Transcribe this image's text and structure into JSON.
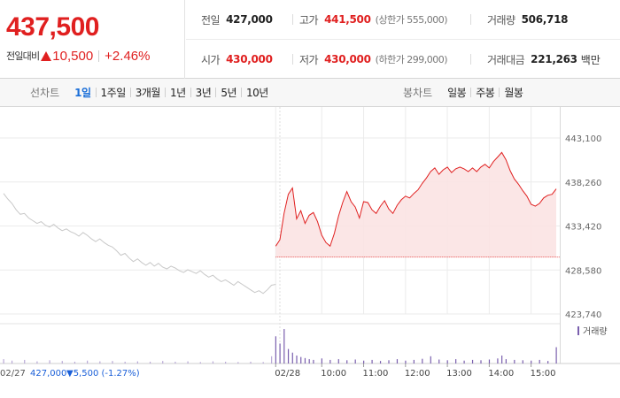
{
  "header": {
    "price": "437,500",
    "change_label": "전일대비",
    "change_value": "10,500",
    "change_percent": "+2.46%",
    "colors": {
      "up": "#e02020",
      "down": "#1a5fd8"
    }
  },
  "stats": {
    "prev_close": {
      "label": "전일",
      "value": "427,000"
    },
    "high": {
      "label": "고가",
      "value": "441,500",
      "sub": "(상한가 555,000)"
    },
    "volume": {
      "label": "거래량",
      "value": "506,718"
    },
    "open": {
      "label": "시가",
      "value": "430,000"
    },
    "low": {
      "label": "저가",
      "value": "430,000",
      "sub": "(하한가 299,000)"
    },
    "amount": {
      "label": "거래대금",
      "value": "221,263",
      "unit": "백만"
    }
  },
  "tabs": {
    "line_label": "선차트",
    "line_items": [
      "1일",
      "1주일",
      "3개월",
      "1년",
      "3년",
      "5년",
      "10년"
    ],
    "line_active": "1일",
    "candle_label": "봉차트",
    "candle_items": [
      "일봉",
      "주봉",
      "월봉"
    ]
  },
  "chart_data": {
    "type": "line",
    "ylim": [
      423740,
      443100
    ],
    "yticks": [
      "443,100",
      "438,260",
      "433,420",
      "428,580",
      "423,740"
    ],
    "ytick_values": [
      443100,
      438260,
      433420,
      428580,
      423740
    ],
    "reference_line": 430000,
    "series": [
      {
        "date": "02/27",
        "points": [
          [
            0,
            437000
          ],
          [
            1,
            436400
          ],
          [
            2,
            435900
          ],
          [
            3,
            435200
          ],
          [
            4,
            434700
          ],
          [
            5,
            434800
          ],
          [
            6,
            434300
          ],
          [
            7,
            434000
          ],
          [
            8,
            433700
          ],
          [
            9,
            433900
          ],
          [
            10,
            433500
          ],
          [
            11,
            433300
          ],
          [
            12,
            433600
          ],
          [
            13,
            433200
          ],
          [
            14,
            432900
          ],
          [
            15,
            433100
          ],
          [
            16,
            432800
          ],
          [
            17,
            432600
          ],
          [
            18,
            432300
          ],
          [
            19,
            432700
          ],
          [
            20,
            432400
          ],
          [
            21,
            432000
          ],
          [
            22,
            431700
          ],
          [
            23,
            432000
          ],
          [
            24,
            431600
          ],
          [
            25,
            431300
          ],
          [
            26,
            431100
          ],
          [
            27,
            430700
          ],
          [
            28,
            430200
          ],
          [
            29,
            430400
          ],
          [
            30,
            429900
          ],
          [
            31,
            429500
          ],
          [
            32,
            429800
          ],
          [
            33,
            429400
          ],
          [
            34,
            429100
          ],
          [
            35,
            429400
          ],
          [
            36,
            429000
          ],
          [
            37,
            429300
          ],
          [
            38,
            428900
          ],
          [
            39,
            428700
          ],
          [
            40,
            429000
          ],
          [
            41,
            428800
          ],
          [
            42,
            428500
          ],
          [
            43,
            428300
          ],
          [
            44,
            428600
          ],
          [
            45,
            428400
          ],
          [
            46,
            428200
          ],
          [
            47,
            428500
          ],
          [
            48,
            428100
          ],
          [
            49,
            427800
          ],
          [
            50,
            428000
          ],
          [
            51,
            427600
          ],
          [
            52,
            427300
          ],
          [
            53,
            427500
          ],
          [
            54,
            427200
          ],
          [
            55,
            426900
          ],
          [
            56,
            427300
          ],
          [
            57,
            427000
          ],
          [
            58,
            426700
          ],
          [
            59,
            426400
          ],
          [
            60,
            426100
          ],
          [
            61,
            426300
          ],
          [
            62,
            426000
          ],
          [
            63,
            426400
          ],
          [
            64,
            426900
          ],
          [
            65,
            427000
          ]
        ]
      },
      {
        "date": "02/28",
        "points": [
          [
            65,
            431200
          ],
          [
            66,
            431900
          ],
          [
            67,
            434800
          ],
          [
            68,
            436900
          ],
          [
            69,
            437600
          ],
          [
            70,
            434200
          ],
          [
            71,
            435100
          ],
          [
            72,
            433700
          ],
          [
            73,
            434600
          ],
          [
            74,
            434900
          ],
          [
            75,
            433900
          ],
          [
            76,
            432400
          ],
          [
            77,
            431600
          ],
          [
            78,
            431200
          ],
          [
            79,
            432600
          ],
          [
            80,
            434500
          ],
          [
            81,
            436000
          ],
          [
            82,
            437200
          ],
          [
            83,
            436100
          ],
          [
            84,
            435500
          ],
          [
            85,
            434300
          ],
          [
            86,
            436100
          ],
          [
            87,
            436000
          ],
          [
            88,
            435200
          ],
          [
            89,
            434800
          ],
          [
            90,
            435600
          ],
          [
            91,
            436200
          ],
          [
            92,
            435300
          ],
          [
            93,
            434800
          ],
          [
            94,
            435700
          ],
          [
            95,
            436300
          ],
          [
            96,
            436700
          ],
          [
            97,
            436500
          ],
          [
            98,
            437000
          ],
          [
            99,
            437400
          ],
          [
            100,
            438100
          ],
          [
            101,
            438700
          ],
          [
            102,
            439400
          ],
          [
            103,
            439800
          ],
          [
            104,
            439100
          ],
          [
            105,
            439600
          ],
          [
            106,
            439900
          ],
          [
            107,
            439300
          ],
          [
            108,
            439700
          ],
          [
            109,
            439900
          ],
          [
            110,
            439700
          ],
          [
            111,
            439400
          ],
          [
            112,
            439800
          ],
          [
            113,
            439400
          ],
          [
            114,
            439900
          ],
          [
            115,
            440200
          ],
          [
            116,
            439800
          ],
          [
            117,
            440500
          ],
          [
            118,
            441000
          ],
          [
            119,
            441500
          ],
          [
            120,
            440700
          ],
          [
            121,
            439500
          ],
          [
            122,
            438600
          ],
          [
            123,
            438000
          ],
          [
            124,
            437300
          ],
          [
            125,
            436700
          ],
          [
            126,
            435800
          ],
          [
            127,
            435600
          ],
          [
            128,
            435900
          ],
          [
            129,
            436500
          ],
          [
            130,
            436800
          ],
          [
            131,
            436900
          ],
          [
            132,
            437500
          ]
        ]
      }
    ],
    "volume": {
      "label": "거래량",
      "bars": [
        [
          0,
          0.12
        ],
        [
          2,
          0.08
        ],
        [
          5,
          0.1
        ],
        [
          8,
          0.06
        ],
        [
          11,
          0.09
        ],
        [
          14,
          0.07
        ],
        [
          17,
          0.05
        ],
        [
          20,
          0.08
        ],
        [
          23,
          0.06
        ],
        [
          26,
          0.07
        ],
        [
          29,
          0.05
        ],
        [
          32,
          0.06
        ],
        [
          35,
          0.05
        ],
        [
          38,
          0.07
        ],
        [
          41,
          0.05
        ],
        [
          44,
          0.06
        ],
        [
          47,
          0.04
        ],
        [
          50,
          0.06
        ],
        [
          53,
          0.05
        ],
        [
          56,
          0.04
        ],
        [
          59,
          0.05
        ],
        [
          62,
          0.04
        ],
        [
          64,
          0.2
        ],
        [
          65,
          0.75
        ],
        [
          66,
          0.55
        ],
        [
          67,
          0.95
        ],
        [
          68,
          0.4
        ],
        [
          69,
          0.3
        ],
        [
          70,
          0.22
        ],
        [
          71,
          0.18
        ],
        [
          72,
          0.15
        ],
        [
          73,
          0.12
        ],
        [
          74,
          0.1
        ],
        [
          76,
          0.14
        ],
        [
          78,
          0.1
        ],
        [
          80,
          0.12
        ],
        [
          82,
          0.09
        ],
        [
          84,
          0.11
        ],
        [
          86,
          0.08
        ],
        [
          88,
          0.1
        ],
        [
          90,
          0.07
        ],
        [
          92,
          0.09
        ],
        [
          94,
          0.12
        ],
        [
          96,
          0.08
        ],
        [
          98,
          0.1
        ],
        [
          100,
          0.13
        ],
        [
          102,
          0.2
        ],
        [
          104,
          0.11
        ],
        [
          106,
          0.09
        ],
        [
          108,
          0.12
        ],
        [
          110,
          0.08
        ],
        [
          112,
          0.1
        ],
        [
          114,
          0.09
        ],
        [
          116,
          0.11
        ],
        [
          118,
          0.14
        ],
        [
          119,
          0.22
        ],
        [
          120,
          0.12
        ],
        [
          122,
          0.1
        ],
        [
          124,
          0.09
        ],
        [
          126,
          0.08
        ],
        [
          128,
          0.1
        ],
        [
          130,
          0.07
        ],
        [
          132,
          0.45
        ]
      ]
    },
    "xaxis": {
      "left_date": "02/27",
      "left_info_price": "427,000",
      "left_info_change": "▼5,500 (-1.27%)",
      "ticks": [
        {
          "label": "02/28",
          "at": 65
        },
        {
          "label": "10:00",
          "at": 76
        },
        {
          "label": "11:00",
          "at": 86
        },
        {
          "label": "12:00",
          "at": 96
        },
        {
          "label": "13:00",
          "at": 106
        },
        {
          "label": "14:00",
          "at": 116
        },
        {
          "label": "15:00",
          "at": 126
        }
      ]
    }
  }
}
